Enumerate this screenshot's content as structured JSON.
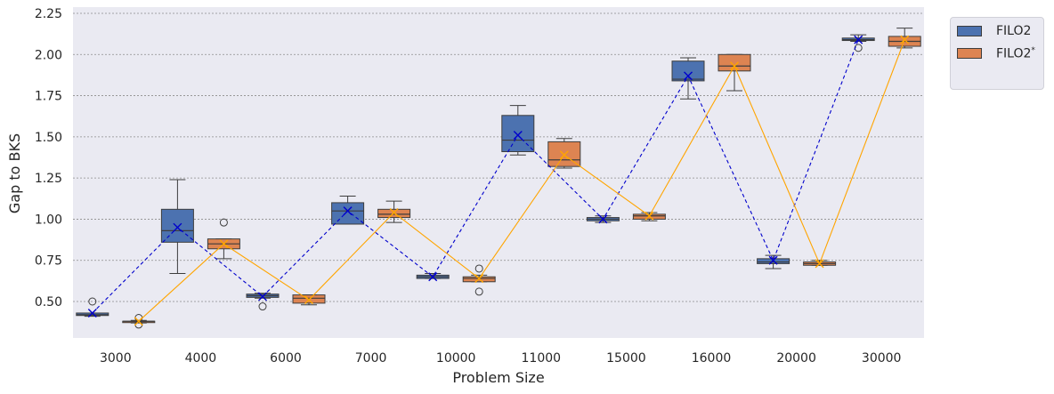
{
  "chart_data": {
    "type": "box",
    "xlabel": "Problem Size",
    "ylabel": "Gap to BKS",
    "ylim": [
      0.3,
      2.25
    ],
    "yticks": [
      "0.50",
      "0.75",
      "1.00",
      "1.25",
      "1.50",
      "1.75",
      "2.00",
      "2.25"
    ],
    "categories": [
      "3000",
      "4000",
      "6000",
      "7000",
      "10000",
      "11000",
      "15000",
      "16000",
      "20000",
      "30000"
    ],
    "grid": true,
    "legend_position": "outside top-right",
    "series": [
      {
        "name": "FILO2",
        "color": "#4c72b0",
        "mean_line_color": "#0000cc",
        "mean_line_style": "dashed",
        "boxes": [
          {
            "min": 0.41,
            "q1": 0.415,
            "median": 0.42,
            "q3": 0.43,
            "max": 0.43,
            "outliers": [
              0.5
            ],
            "mean": 0.43
          },
          {
            "min": 0.67,
            "q1": 0.86,
            "median": 0.93,
            "q3": 1.06,
            "max": 1.24,
            "outliers": [],
            "mean": 0.95
          },
          {
            "min": 0.52,
            "q1": 0.525,
            "median": 0.535,
            "q3": 0.545,
            "max": 0.55,
            "outliers": [
              0.47
            ],
            "mean": 0.53
          },
          {
            "min": 0.97,
            "q1": 0.97,
            "median": 1.05,
            "q3": 1.1,
            "max": 1.14,
            "outliers": [],
            "mean": 1.05
          },
          {
            "min": 0.64,
            "q1": 0.64,
            "median": 0.65,
            "q3": 0.66,
            "max": 0.67,
            "outliers": [],
            "mean": 0.65
          },
          {
            "min": 1.39,
            "q1": 1.41,
            "median": 1.48,
            "q3": 1.63,
            "max": 1.69,
            "outliers": [],
            "mean": 1.51
          },
          {
            "min": 0.98,
            "q1": 0.99,
            "median": 1.0,
            "q3": 1.01,
            "max": 1.02,
            "outliers": [],
            "mean": 1.0
          },
          {
            "min": 1.73,
            "q1": 1.84,
            "median": 1.85,
            "q3": 1.96,
            "max": 1.98,
            "outliers": [],
            "mean": 1.87
          },
          {
            "min": 0.7,
            "q1": 0.73,
            "median": 0.74,
            "q3": 0.76,
            "max": 0.78,
            "outliers": [],
            "mean": 0.75
          },
          {
            "min": 2.08,
            "q1": 2.085,
            "median": 2.09,
            "q3": 2.1,
            "max": 2.12,
            "outliers": [
              2.04
            ],
            "mean": 2.09
          }
        ]
      },
      {
        "name": "FILO2",
        "name_superscript": "*",
        "color": "#dd8452",
        "mean_line_color": "#ffa500",
        "mean_line_style": "solid",
        "boxes": [
          {
            "min": 0.37,
            "q1": 0.375,
            "median": 0.38,
            "q3": 0.38,
            "max": 0.385,
            "outliers": [
              0.4,
              0.36
            ],
            "mean": 0.38
          },
          {
            "min": 0.76,
            "q1": 0.82,
            "median": 0.85,
            "q3": 0.88,
            "max": 0.88,
            "outliers": [
              0.98
            ],
            "mean": 0.85
          },
          {
            "min": 0.48,
            "q1": 0.49,
            "median": 0.52,
            "q3": 0.54,
            "max": 0.54,
            "outliers": [],
            "mean": 0.51
          },
          {
            "min": 0.98,
            "q1": 1.01,
            "median": 1.03,
            "q3": 1.06,
            "max": 1.11,
            "outliers": [],
            "mean": 1.04
          },
          {
            "min": 0.62,
            "q1": 0.62,
            "median": 0.64,
            "q3": 0.65,
            "max": 0.66,
            "outliers": [
              0.7,
              0.56
            ],
            "mean": 0.64
          },
          {
            "min": 1.31,
            "q1": 1.32,
            "median": 1.36,
            "q3": 1.47,
            "max": 1.49,
            "outliers": [],
            "mean": 1.39
          },
          {
            "min": 0.99,
            "q1": 1.0,
            "median": 1.02,
            "q3": 1.03,
            "max": 1.04,
            "outliers": [],
            "mean": 1.02
          },
          {
            "min": 1.78,
            "q1": 1.9,
            "median": 1.93,
            "q3": 2.0,
            "max": 2.0,
            "outliers": [],
            "mean": 1.93
          },
          {
            "min": 0.72,
            "q1": 0.72,
            "median": 0.73,
            "q3": 0.74,
            "max": 0.75,
            "outliers": [],
            "mean": 0.73
          },
          {
            "min": 2.04,
            "q1": 2.05,
            "median": 2.08,
            "q3": 2.11,
            "max": 2.16,
            "outliers": [],
            "mean": 2.09
          }
        ]
      }
    ]
  }
}
